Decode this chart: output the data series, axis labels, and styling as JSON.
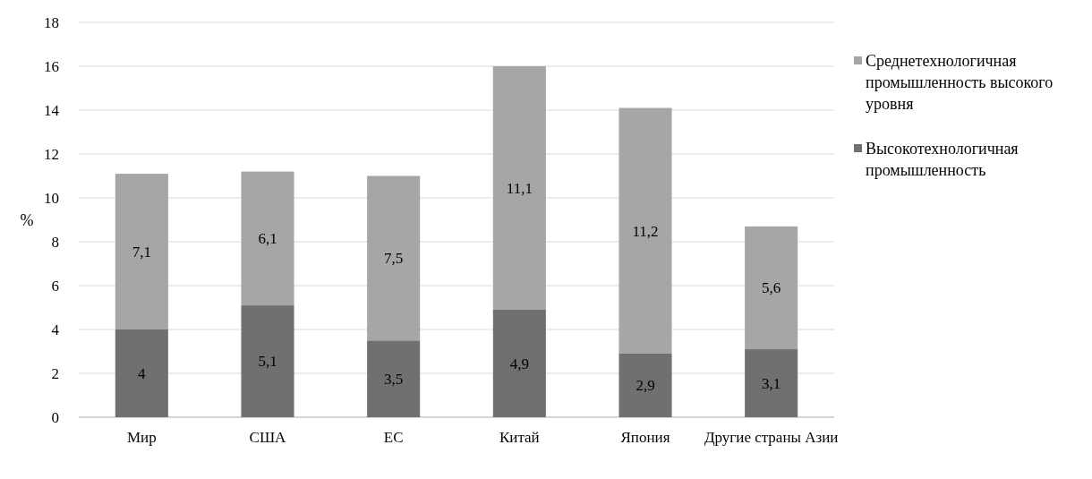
{
  "chart_data": {
    "type": "bar",
    "stacked": true,
    "ylabel": "%",
    "categories": [
      "Мир",
      "США",
      "ЕС",
      "Китай",
      "Япония",
      "Другие страны Азии"
    ],
    "series": [
      {
        "name": "Высокотехнологичная промышленность",
        "color": "#707070",
        "values": [
          4,
          5.1,
          3.5,
          4.9,
          2.9,
          3.1
        ],
        "value_labels": [
          "4",
          "5,1",
          "3,5",
          "4,9",
          "2,9",
          "3,1"
        ]
      },
      {
        "name": "Среднетехнологичная промышленность высокого уровня",
        "color": "#a6a6a6",
        "values": [
          7.1,
          6.1,
          7.5,
          11.1,
          11.2,
          5.6
        ],
        "value_labels": [
          "7,1",
          "6,1",
          "7,5",
          "11,1",
          "11,2",
          "5,6"
        ]
      }
    ],
    "ylim": [
      0,
      18
    ],
    "yticks": [
      0,
      2,
      4,
      6,
      8,
      10,
      12,
      14,
      16,
      18
    ],
    "grid": "y",
    "legend": "right"
  }
}
